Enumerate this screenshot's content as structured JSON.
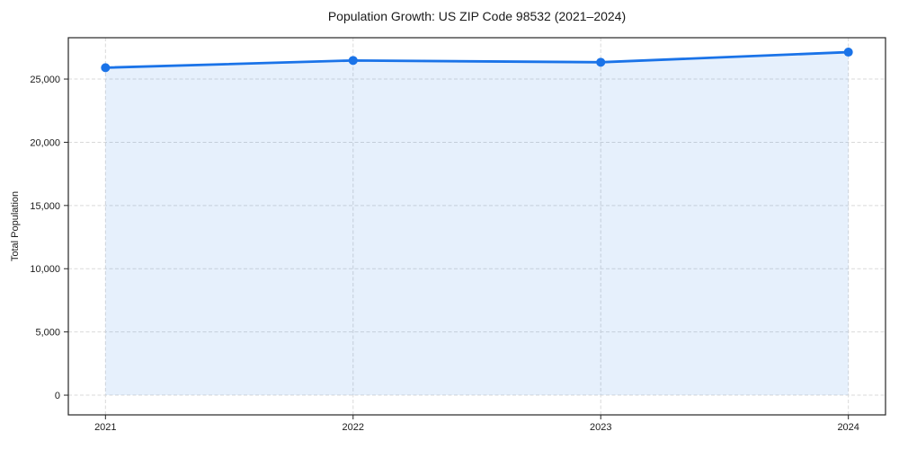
{
  "chart_data": {
    "type": "line",
    "title": "Population Growth: US ZIP Code 98532 (2021–2024)",
    "xlabel": "",
    "ylabel": "Total Population",
    "x": [
      2021,
      2022,
      2023,
      2024
    ],
    "x_tick_labels": [
      "2021",
      "2022",
      "2023",
      "2024"
    ],
    "series": [
      {
        "name": "Total Population",
        "values": [
          25900,
          26470,
          26330,
          27130
        ]
      }
    ],
    "yticks": [
      0,
      5000,
      10000,
      15000,
      20000,
      25000
    ],
    "y_tick_labels": [
      "0",
      "5,000",
      "10,000",
      "15,000",
      "20,000",
      "25,000"
    ],
    "ylim": [
      -1560,
      28270
    ],
    "xlim": [
      2020.85,
      2024.15
    ],
    "grid": "dashed",
    "legend_position": "none",
    "area_fill": true,
    "show_markers": true,
    "colors": {
      "line": "#1a73e8",
      "marker": "#1a73e8",
      "fill": "rgba(26,115,232,0.11)",
      "grid": "#d9d9d9",
      "spine": "#262626",
      "text": "#1a1a1a"
    }
  }
}
